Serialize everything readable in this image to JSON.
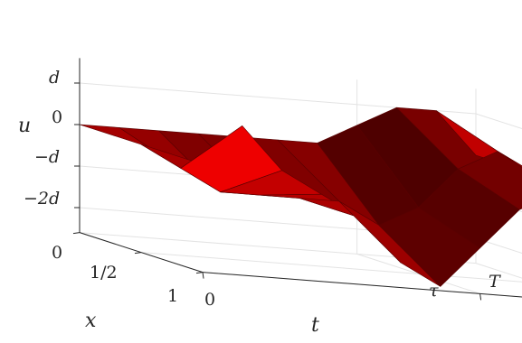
{
  "chart_data": {
    "type": "surface",
    "title": "",
    "xlabel": "t",
    "ylabel": "x",
    "zlabel": "u",
    "x_ticks": [
      "0",
      "τ",
      "T"
    ],
    "x_tick_values": [
      0,
      7,
      10
    ],
    "y_ticks": [
      "0",
      "1/2",
      "1"
    ],
    "y_tick_values": [
      0,
      0.5,
      1
    ],
    "z_ticks": [
      "d",
      "0",
      "−d",
      "−2d"
    ],
    "z_tick_values": [
      1,
      0,
      -1,
      -2
    ],
    "xlim": [
      0,
      10
    ],
    "ylim": [
      0,
      1
    ],
    "zlim": [
      -2.6,
      1.6
    ],
    "grid": true,
    "color": "#ff0000",
    "t": [
      0,
      1,
      2,
      3,
      4,
      5,
      6,
      7,
      8,
      9,
      10
    ],
    "x": [
      0,
      0.5,
      1
    ],
    "u": [
      [
        0,
        0,
        0,
        0,
        0,
        0,
        0,
        0.5,
        1,
        1,
        0
      ],
      [
        0,
        -0.5,
        -1,
        -1,
        -1,
        -1,
        -1.5,
        -1,
        0,
        0.5,
        0
      ],
      [
        0,
        1,
        0,
        -0.5,
        -1,
        -2,
        -2.5,
        -1.5,
        -0.5,
        0,
        0
      ]
    ]
  }
}
